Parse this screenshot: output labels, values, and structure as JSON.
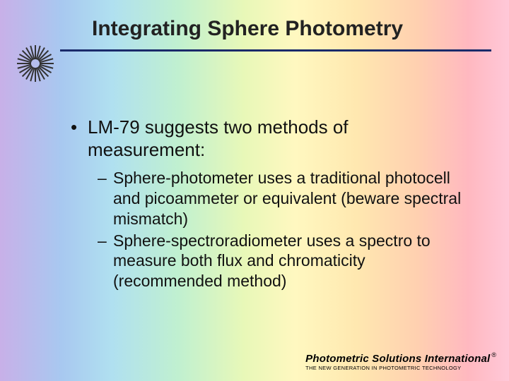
{
  "title": "Integrating Sphere Photometry",
  "background_gradient_colors": [
    "#c8b0e8",
    "#a8c8f0",
    "#b0e0f0",
    "#c0f0d0",
    "#e8f8b8",
    "#fff8c0",
    "#ffe8b0",
    "#ffd0b0",
    "#ffb8c0",
    "#ffc8d8"
  ],
  "divider_color": "#1a2a6a",
  "bullets": [
    {
      "text": "LM-79 suggests two methods of measurement:",
      "sub": [
        "Sphere-photometer uses a traditional photocell and picoammeter or equivalent (beware spectral mismatch)",
        "Sphere-spectroradiometer uses a spectro to measure both flux and chromaticity (recommended method)"
      ]
    }
  ],
  "typography": {
    "title_fontsize": 30,
    "bullet_fontsize": 26,
    "sub_fontsize": 23,
    "text_color": "#111111"
  },
  "footer": {
    "company": "Photometric Solutions International",
    "reg_mark": "®",
    "tagline": "THE NEW GENERATION IN PHOTOMETRIC TECHNOLOGY"
  },
  "sunburst": {
    "stroke": "#333333",
    "rays": 24,
    "inner_r": 6,
    "outer_r": 26
  }
}
